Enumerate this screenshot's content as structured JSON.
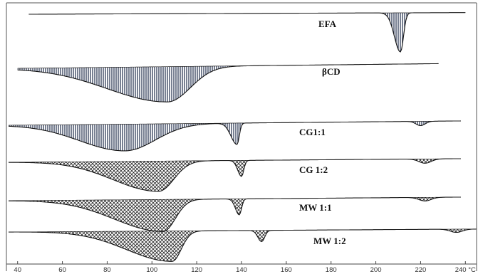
{
  "chart_data": {
    "type": "line",
    "title": "",
    "xlabel": "",
    "ylabel": "",
    "x_unit": "°C",
    "xlim": [
      35,
      245
    ],
    "ticks": [
      40,
      60,
      80,
      100,
      120,
      140,
      160,
      180,
      200,
      220,
      240
    ],
    "tick_labels": [
      "40",
      "60",
      "80",
      "100",
      "120",
      "140",
      "160",
      "180",
      "200",
      "220",
      "240 °C"
    ],
    "grid": false,
    "legend": "none",
    "hatch_color": "#1e2a4a",
    "line_color": "#111111",
    "curves": [
      {
        "label": "EFA",
        "x_range": [
          45,
          240
        ],
        "events": [
          {
            "type": "endotherm",
            "peak": 211,
            "depth": 1.0,
            "width_left": 4,
            "width_right": 2,
            "onset": 204
          }
        ]
      },
      {
        "label": "βCD",
        "x_range": [
          40,
          228
        ],
        "events": [
          {
            "type": "endotherm",
            "peak": 107,
            "depth": 0.9,
            "width_left": 40,
            "width_right": 15,
            "onset": 42
          }
        ]
      },
      {
        "label": "CG1:1",
        "x_range": [
          36,
          238
        ],
        "events": [
          {
            "type": "endotherm",
            "peak": 88,
            "depth": 0.75,
            "width_left": 30,
            "width_right": 20,
            "onset": 36
          },
          {
            "type": "endotherm",
            "peak": 138,
            "depth": 0.6,
            "width_left": 4,
            "width_right": 1.5,
            "onset": 132
          },
          {
            "type": "endotherm",
            "peak": 220,
            "depth": 0.12,
            "width_left": 3,
            "width_right": 3,
            "onset": 215
          }
        ]
      },
      {
        "label": "CG 1:2",
        "x_range": [
          36,
          238
        ],
        "events": [
          {
            "type": "endotherm",
            "peak": 103,
            "depth": 0.85,
            "width_left": 30,
            "width_right": 10,
            "onset": 36
          },
          {
            "type": "endotherm",
            "peak": 140,
            "depth": 0.45,
            "width_left": 2.5,
            "width_right": 1.5,
            "onset": 136
          },
          {
            "type": "endotherm",
            "peak": 222,
            "depth": 0.12,
            "width_left": 4,
            "width_right": 4,
            "onset": 215
          }
        ]
      },
      {
        "label": "MW 1:1",
        "x_range": [
          36,
          238
        ],
        "events": [
          {
            "type": "endotherm",
            "peak": 105,
            "depth": 0.9,
            "width_left": 32,
            "width_right": 8,
            "onset": 36
          },
          {
            "type": "endotherm",
            "peak": 139,
            "depth": 0.45,
            "width_left": 2.5,
            "width_right": 1.5,
            "onset": 135
          },
          {
            "type": "endotherm",
            "peak": 222,
            "depth": 0.1,
            "width_left": 4,
            "width_right": 4,
            "onset": 215
          }
        ]
      },
      {
        "label": "MW 1:2",
        "x_range": [
          36,
          245
        ],
        "events": [
          {
            "type": "endotherm",
            "peak": 109,
            "depth": 0.95,
            "width_left": 30,
            "width_right": 6,
            "onset": 36
          },
          {
            "type": "endotherm",
            "peak": 149,
            "depth": 0.35,
            "width_left": 2.5,
            "width_right": 2,
            "onset": 145
          },
          {
            "type": "endotherm",
            "peak": 236,
            "depth": 0.1,
            "width_left": 4,
            "width_right": 4,
            "onset": 228
          }
        ]
      }
    ]
  }
}
